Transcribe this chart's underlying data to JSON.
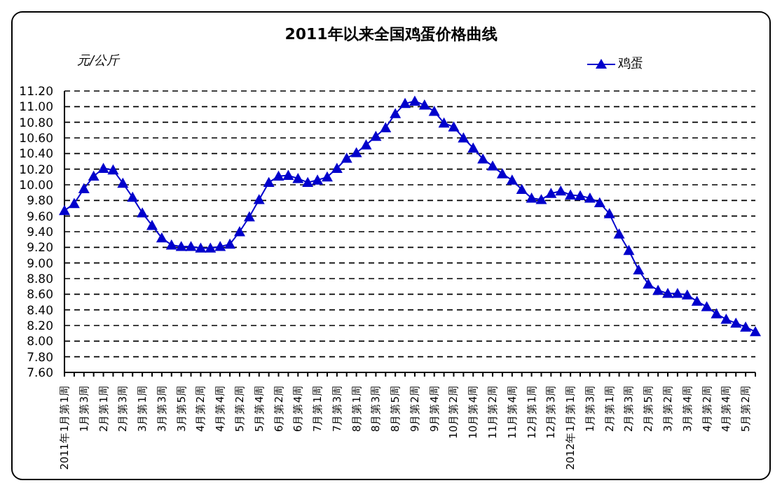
{
  "chart_data": {
    "type": "line",
    "title": "2011年以来全国鸡蛋价格曲线",
    "ylabel": "元/公斤",
    "categories": [
      "2011年1月第1周",
      null,
      "1月第3周",
      null,
      "2月第1周",
      null,
      "2月第3周",
      null,
      "3月第1周",
      null,
      "3月第3周",
      null,
      "3月第5周",
      null,
      "4月第2周",
      null,
      "4月第4周",
      null,
      "5月第2周",
      null,
      "5月第4周",
      null,
      "6月第2周",
      null,
      "6月第4周",
      null,
      "7月第1周",
      null,
      "7月第3周",
      null,
      "8月第1周",
      null,
      "8月第3周",
      null,
      "8月第5周",
      null,
      "9月第2周",
      null,
      "9月第4周",
      null,
      "10月第2周",
      null,
      "10月第4周",
      null,
      "11月第2周",
      null,
      "11月第4周",
      null,
      "12月第1周",
      null,
      "12月第3周",
      null,
      "2012年1月第1周",
      null,
      "1月第3周",
      null,
      "2月第1周",
      null,
      "2月第3周",
      null,
      "2月第5周",
      null,
      "3月第2周",
      null,
      "3月第4周",
      null,
      "4月第2周",
      null,
      "4月第4周",
      null,
      "5月第2周",
      null
    ],
    "series": [
      {
        "name": "鸡蛋",
        "color": "#0000cc",
        "values": [
          9.67,
          9.76,
          9.95,
          10.11,
          10.21,
          10.19,
          10.02,
          9.84,
          9.64,
          9.48,
          9.32,
          9.23,
          9.21,
          9.21,
          9.19,
          9.19,
          9.21,
          9.24,
          9.4,
          9.59,
          9.81,
          10.03,
          10.11,
          10.12,
          10.08,
          10.03,
          10.06,
          10.1,
          10.21,
          10.34,
          10.41,
          10.51,
          10.62,
          10.73,
          10.91,
          11.04,
          11.07,
          11.02,
          10.94,
          10.79,
          10.74,
          10.6,
          10.47,
          10.33,
          10.24,
          10.14,
          10.06,
          9.94,
          9.83,
          9.81,
          9.89,
          9.92,
          9.87,
          9.86,
          9.83,
          9.77,
          9.63,
          9.37,
          9.16,
          8.91,
          8.73,
          8.65,
          8.61,
          8.61,
          8.59,
          8.51,
          8.44,
          8.35,
          8.28,
          8.23,
          8.18,
          8.12
        ]
      }
    ],
    "ylim": [
      7.6,
      11.2
    ],
    "yticks": [
      {
        "value": 7.6,
        "label": "7.60"
      },
      {
        "value": 7.8,
        "label": "7.80"
      },
      {
        "value": 8.0,
        "label": "8.00"
      },
      {
        "value": 8.2,
        "label": "8.20"
      },
      {
        "value": 8.4,
        "label": "8.40"
      },
      {
        "value": 8.6,
        "label": "8.60"
      },
      {
        "value": 8.8,
        "label": "8.80"
      },
      {
        "value": 9.0,
        "label": "9.00"
      },
      {
        "value": 9.2,
        "label": "9.20"
      },
      {
        "value": 9.4,
        "label": "9.40"
      },
      {
        "value": 9.6,
        "label": "9.60"
      },
      {
        "value": 9.8,
        "label": "9.80"
      },
      {
        "value": 10.0,
        "label": "10.00"
      },
      {
        "value": 10.2,
        "label": "10.20"
      },
      {
        "value": 10.4,
        "label": "10.40"
      },
      {
        "value": 10.6,
        "label": "10.60"
      },
      {
        "value": 10.8,
        "label": "10.80"
      },
      {
        "value": 11.0,
        "label": "11.00"
      },
      {
        "value": 11.2,
        "label": "11.20"
      }
    ],
    "grid": "y",
    "legend": "top right",
    "marker": "triangle",
    "line_style": "solid"
  }
}
